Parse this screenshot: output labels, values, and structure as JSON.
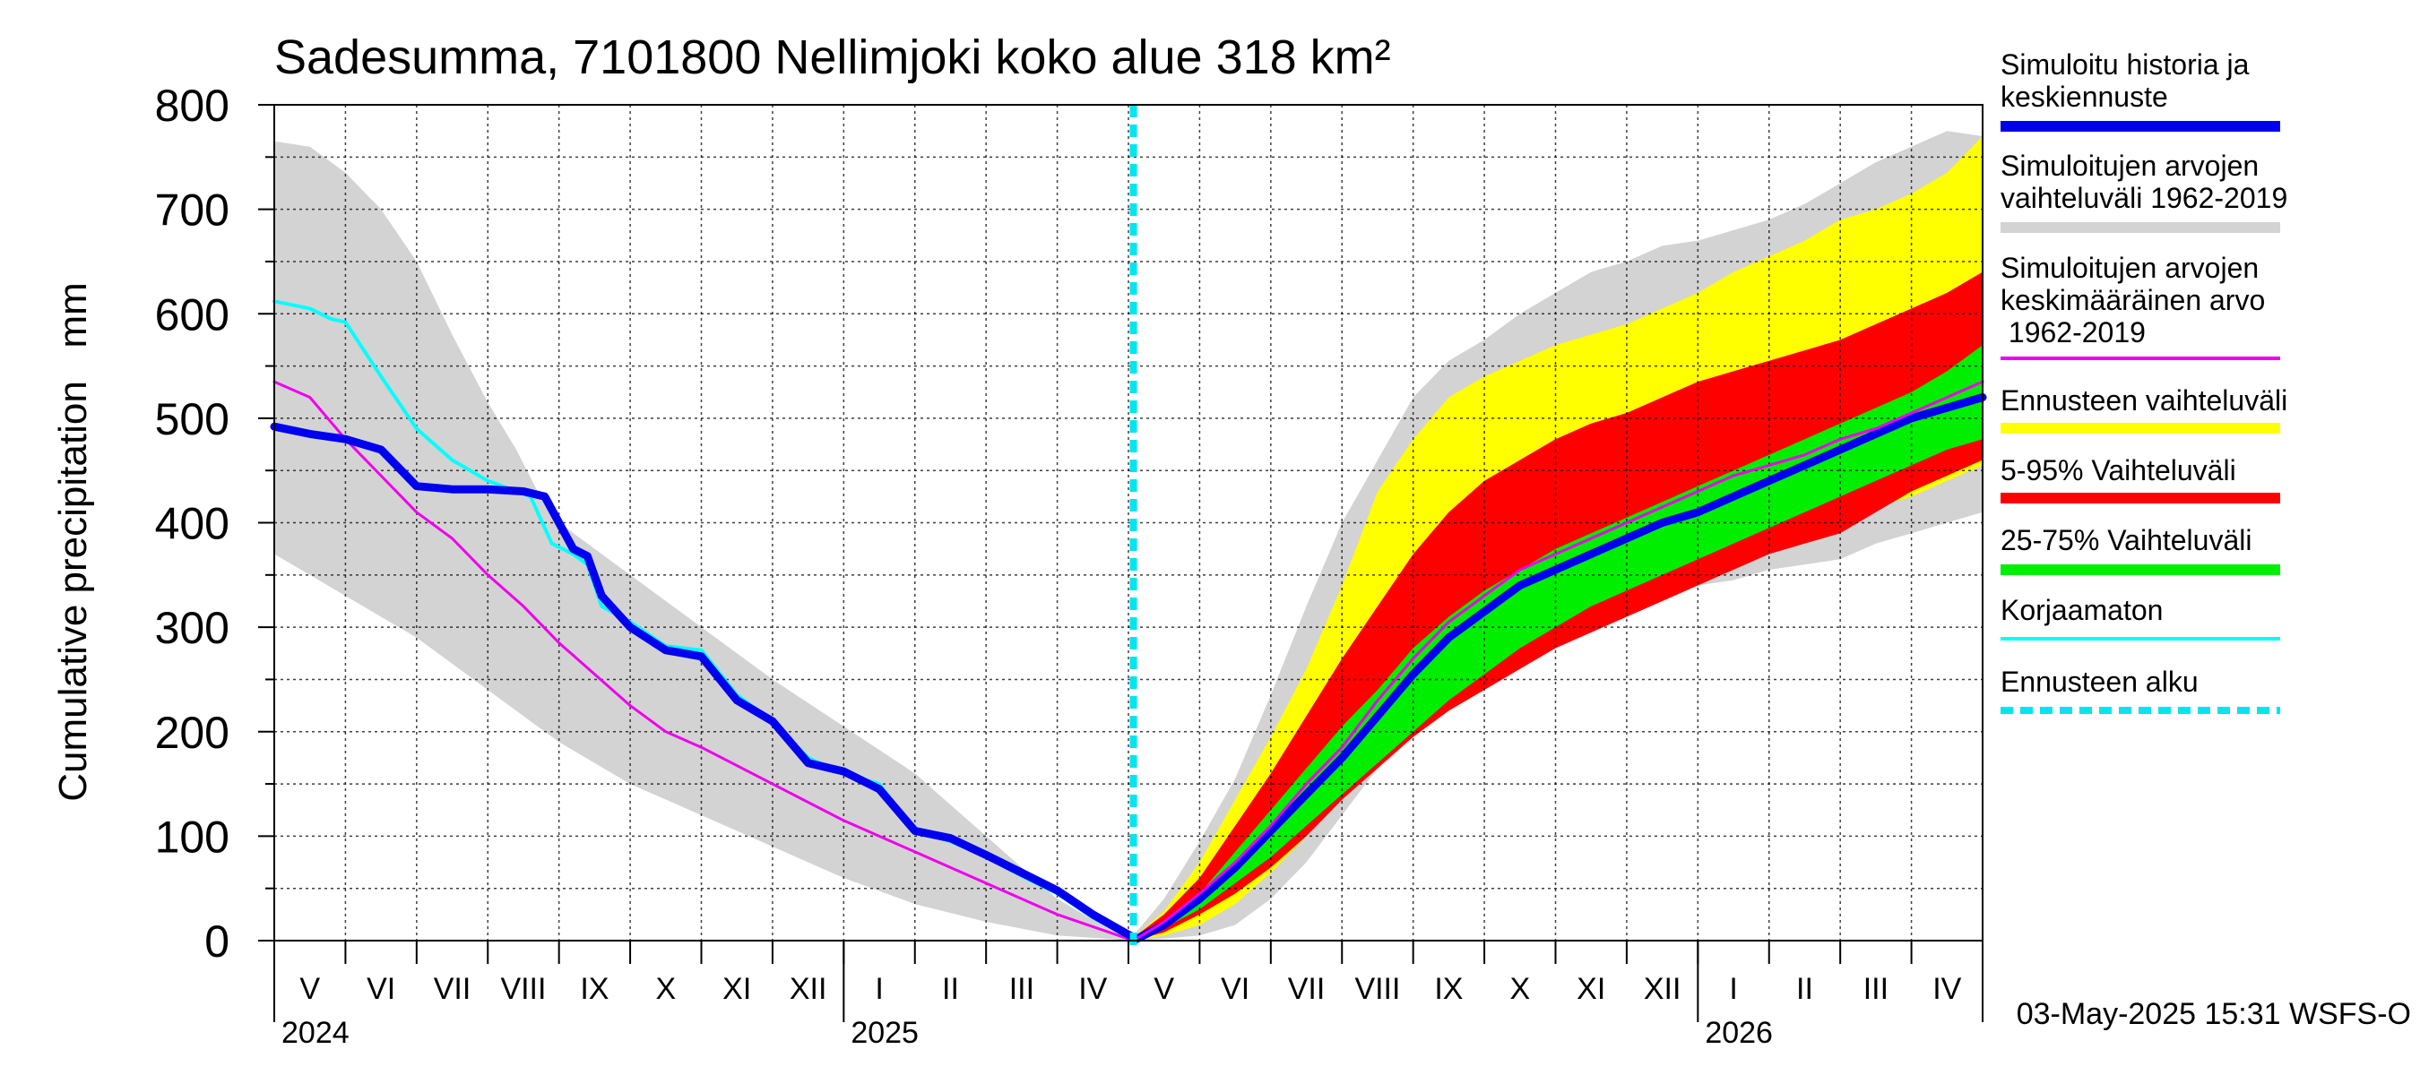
{
  "chart_data": {
    "type": "line",
    "title": "Sadesumma, 7101800 Nellimjoki koko alue 318 km²",
    "ylabel": "Cumulative precipitation   mm",
    "ylim": [
      0,
      800
    ],
    "yticks": [
      0,
      100,
      200,
      300,
      400,
      500,
      600,
      700,
      800
    ],
    "xrange_months": [
      0,
      24
    ],
    "months": [
      "V",
      "VI",
      "VII",
      "VIII",
      "IX",
      "X",
      "XI",
      "XII",
      "I",
      "II",
      "III",
      "IV",
      "V",
      "VI",
      "VII",
      "VIII",
      "IX",
      "X",
      "XI",
      "XII",
      "I",
      "II",
      "III",
      "IV"
    ],
    "years": [
      {
        "label": "2024",
        "month_index": 0
      },
      {
        "label": "2025",
        "month_index": 8
      },
      {
        "label": "2026",
        "month_index": 20
      }
    ],
    "forecast_start_month": 12.07,
    "timestamp": "03-May-2025 15:31 WSFS-O",
    "legend": [
      {
        "label": "Simuloitu historia ja keskiennuste",
        "color": "#0000ee",
        "style": "thick"
      },
      {
        "label": "Simuloitujen arvojen vaihteluväli 1962-2019",
        "color": "#d3d3d3",
        "style": "thick"
      },
      {
        "label": "Simuloitujen arvojen keskimääräinen arvo 1962-2019",
        "color": "#ee00ee",
        "style": "thin"
      },
      {
        "label": "Ennusteen vaihteluväli",
        "color": "#ffff00",
        "style": "thick"
      },
      {
        "label": "5-95% Vaihteluväli",
        "color": "#ff0000",
        "style": "thick"
      },
      {
        "label": "25-75% Vaihteluväli",
        "color": "#00ee00",
        "style": "thick"
      },
      {
        "label": "Korjaamaton",
        "color": "#00ffff",
        "style": "thin"
      },
      {
        "label": "Ennusteen alku",
        "color": "#00e5ee",
        "style": "dashed"
      }
    ],
    "series": [
      {
        "name": "hist_range_upper",
        "color": "#d3d3d3",
        "x": [
          0,
          0.5,
          1,
          1.5,
          2,
          2.5,
          3,
          3.4,
          3.7,
          4,
          5,
          6,
          7,
          8,
          9,
          10,
          11,
          11.5,
          12.07
        ],
        "values": [
          765,
          760,
          735,
          700,
          650,
          580,
          515,
          470,
          430,
          400,
          350,
          300,
          250,
          205,
          160,
          100,
          40,
          20,
          8
        ]
      },
      {
        "name": "hist_range_lower",
        "color": "#d3d3d3",
        "x": [
          0,
          1,
          2,
          3,
          4,
          5,
          6,
          7,
          8,
          9,
          10,
          11,
          12.07
        ],
        "values": [
          370,
          330,
          290,
          240,
          190,
          150,
          120,
          90,
          60,
          35,
          18,
          5,
          0
        ]
      },
      {
        "name": "hist_mean",
        "color": "#ee00ee",
        "x": [
          0,
          0.5,
          1,
          1.5,
          2,
          2.5,
          3,
          3.5,
          4,
          4.5,
          5,
          5.5,
          6,
          7,
          8,
          9,
          10,
          11,
          12.07
        ],
        "values": [
          535,
          520,
          480,
          445,
          410,
          385,
          350,
          320,
          285,
          255,
          225,
          200,
          185,
          150,
          115,
          85,
          55,
          25,
          0
        ]
      },
      {
        "name": "korjaamaton",
        "color": "#00ffff",
        "x": [
          0,
          0.5,
          0.8,
          1,
          1.5,
          2,
          2.5,
          3,
          3.6,
          3.9,
          4.2,
          4.4,
          4.6,
          5,
          5.5,
          6,
          6.5,
          7,
          7.5,
          8,
          8.5,
          9,
          9.5,
          10,
          10.5,
          11,
          11.5,
          12.07
        ],
        "values": [
          612,
          605,
          595,
          592,
          540,
          490,
          460,
          440,
          425,
          380,
          370,
          360,
          320,
          305,
          282,
          278,
          235,
          210,
          175,
          160,
          150,
          105,
          95,
          80,
          62,
          45,
          22,
          3
        ]
      },
      {
        "name": "hist_median",
        "color": "#0000ee",
        "x": [
          0,
          0.5,
          1,
          1.5,
          2,
          2.5,
          3,
          3.5,
          3.8,
          4.2,
          4.4,
          4.6,
          5,
          5.5,
          6,
          6.5,
          7,
          7.5,
          8,
          8.5,
          9,
          9.5,
          10,
          10.5,
          11,
          11.5,
          12.07
        ],
        "values": [
          492,
          485,
          480,
          470,
          435,
          432,
          432,
          430,
          425,
          375,
          368,
          330,
          300,
          278,
          272,
          230,
          210,
          170,
          162,
          145,
          105,
          98,
          82,
          65,
          48,
          25,
          3
        ]
      }
    ],
    "forecast": {
      "x": [
        12.07,
        12.5,
        13,
        13.5,
        14,
        14.5,
        15,
        15.5,
        16,
        16.5,
        17,
        17.5,
        18,
        18.5,
        19,
        19.5,
        20,
        20.5,
        21,
        21.5,
        22,
        22.5,
        23,
        23.5,
        24
      ],
      "hist_upper": [
        5,
        40,
        95,
        155,
        235,
        320,
        400,
        460,
        520,
        555,
        575,
        600,
        620,
        640,
        650,
        665,
        670,
        680,
        690,
        705,
        725,
        745,
        760,
        775,
        770
      ],
      "hist_lower": [
        0,
        2,
        5,
        15,
        40,
        75,
        120,
        165,
        205,
        230,
        255,
        275,
        290,
        305,
        315,
        330,
        340,
        345,
        355,
        360,
        365,
        380,
        390,
        400,
        410
      ],
      "yellow_upper": [
        3,
        28,
        75,
        135,
        195,
        260,
        340,
        430,
        480,
        520,
        540,
        555,
        570,
        580,
        590,
        605,
        620,
        640,
        655,
        670,
        690,
        700,
        715,
        735,
        770
      ],
      "yellow_lower": [
        0,
        5,
        15,
        35,
        65,
        100,
        140,
        180,
        215,
        250,
        270,
        290,
        305,
        315,
        330,
        345,
        360,
        370,
        385,
        395,
        405,
        415,
        425,
        440,
        455
      ],
      "red_upper": [
        3,
        25,
        60,
        110,
        160,
        215,
        270,
        320,
        370,
        410,
        440,
        460,
        480,
        495,
        505,
        520,
        535,
        545,
        555,
        565,
        575,
        590,
        605,
        620,
        640
      ],
      "red_lower": [
        0,
        8,
        25,
        45,
        70,
        100,
        135,
        165,
        195,
        220,
        240,
        260,
        280,
        295,
        310,
        325,
        340,
        355,
        370,
        380,
        390,
        410,
        430,
        445,
        460
      ],
      "green_upper": [
        2,
        18,
        45,
        85,
        125,
        165,
        205,
        240,
        280,
        310,
        335,
        355,
        375,
        390,
        405,
        420,
        435,
        450,
        465,
        480,
        495,
        510,
        525,
        545,
        570
      ],
      "green_lower": [
        0,
        12,
        30,
        55,
        80,
        110,
        140,
        170,
        200,
        230,
        255,
        280,
        300,
        320,
        335,
        350,
        365,
        380,
        395,
        410,
        425,
        440,
        455,
        470,
        480
      ],
      "median": [
        0,
        15,
        40,
        70,
        105,
        140,
        175,
        215,
        255,
        290,
        315,
        340,
        355,
        370,
        385,
        400,
        410,
        425,
        440,
        455,
        470,
        485,
        500,
        510,
        520
      ],
      "mean": [
        0,
        18,
        45,
        75,
        110,
        150,
        185,
        230,
        270,
        305,
        330,
        355,
        370,
        385,
        400,
        415,
        430,
        445,
        455,
        465,
        480,
        490,
        505,
        520,
        535
      ]
    }
  }
}
